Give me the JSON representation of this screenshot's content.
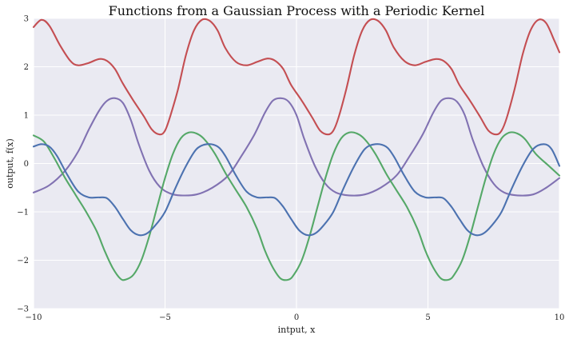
{
  "chart_data": {
    "type": "line",
    "title": "Functions from a Gaussian Process with a Periodic Kernel",
    "xlabel": "intput, x",
    "ylabel": "output, f(x)",
    "xlim": [
      -10,
      10
    ],
    "ylim": [
      -3,
      3
    ],
    "xticks": [
      -10,
      -5,
      0,
      5,
      10
    ],
    "yticks": [
      -3,
      -2,
      -1,
      0,
      1,
      2,
      3
    ],
    "xtick_labels": [
      "−10",
      "−5",
      "0",
      "5",
      "10"
    ],
    "ytick_labels": [
      "−3",
      "−2",
      "−1",
      "0",
      "1",
      "2",
      "3"
    ],
    "grid": true,
    "legend": false,
    "background": "#EAEAF2",
    "grid_color": "#ffffff",
    "series": [
      {
        "color": "#C44E52",
        "points": [
          [
            -10,
            2.82
          ],
          [
            -9.7,
            2.97
          ],
          [
            -9.4,
            2.85
          ],
          [
            -9.0,
            2.45
          ],
          [
            -8.6,
            2.12
          ],
          [
            -8.3,
            2.03
          ],
          [
            -7.9,
            2.08
          ],
          [
            -7.5,
            2.16
          ],
          [
            -7.2,
            2.12
          ],
          [
            -6.9,
            1.95
          ],
          [
            -6.6,
            1.65
          ],
          [
            -6.2,
            1.3
          ],
          [
            -5.8,
            0.97
          ],
          [
            -5.5,
            0.7
          ],
          [
            -5.2,
            0.6
          ],
          [
            -5.0,
            0.68
          ],
          [
            -4.8,
            0.98
          ],
          [
            -4.5,
            1.55
          ],
          [
            -4.2,
            2.25
          ],
          [
            -3.9,
            2.75
          ],
          [
            -3.6,
            2.97
          ],
          [
            -3.3,
            2.95
          ],
          [
            -3.0,
            2.75
          ],
          [
            -2.7,
            2.38
          ],
          [
            -2.3,
            2.1
          ],
          [
            -1.9,
            2.03
          ],
          [
            -1.5,
            2.1
          ],
          [
            -1.1,
            2.17
          ],
          [
            -0.8,
            2.12
          ],
          [
            -0.5,
            1.95
          ],
          [
            -0.2,
            1.62
          ],
          [
            0.2,
            1.3
          ],
          [
            0.6,
            0.95
          ],
          [
            0.9,
            0.68
          ],
          [
            1.2,
            0.6
          ],
          [
            1.4,
            0.68
          ],
          [
            1.6,
            0.95
          ],
          [
            1.9,
            1.55
          ],
          [
            2.2,
            2.25
          ],
          [
            2.5,
            2.75
          ],
          [
            2.8,
            2.97
          ],
          [
            3.1,
            2.95
          ],
          [
            3.4,
            2.75
          ],
          [
            3.7,
            2.4
          ],
          [
            4.1,
            2.12
          ],
          [
            4.5,
            2.03
          ],
          [
            4.9,
            2.1
          ],
          [
            5.3,
            2.16
          ],
          [
            5.6,
            2.12
          ],
          [
            5.9,
            1.95
          ],
          [
            6.2,
            1.62
          ],
          [
            6.6,
            1.3
          ],
          [
            7.0,
            0.95
          ],
          [
            7.3,
            0.68
          ],
          [
            7.6,
            0.6
          ],
          [
            7.8,
            0.68
          ],
          [
            8.0,
            0.95
          ],
          [
            8.3,
            1.55
          ],
          [
            8.6,
            2.25
          ],
          [
            8.9,
            2.75
          ],
          [
            9.2,
            2.97
          ],
          [
            9.5,
            2.9
          ],
          [
            9.8,
            2.55
          ],
          [
            10,
            2.3
          ]
        ]
      },
      {
        "color": "#8172B2",
        "points": [
          [
            -10,
            -0.6
          ],
          [
            -9.4,
            -0.45
          ],
          [
            -8.8,
            -0.15
          ],
          [
            -8.3,
            0.25
          ],
          [
            -7.9,
            0.7
          ],
          [
            -7.5,
            1.1
          ],
          [
            -7.2,
            1.3
          ],
          [
            -6.9,
            1.35
          ],
          [
            -6.6,
            1.25
          ],
          [
            -6.3,
            0.9
          ],
          [
            -6.0,
            0.4
          ],
          [
            -5.6,
            -0.15
          ],
          [
            -5.2,
            -0.48
          ],
          [
            -4.8,
            -0.62
          ],
          [
            -4.4,
            -0.66
          ],
          [
            -3.8,
            -0.64
          ],
          [
            -3.2,
            -0.5
          ],
          [
            -2.6,
            -0.25
          ],
          [
            -2.1,
            0.15
          ],
          [
            -1.6,
            0.6
          ],
          [
            -1.2,
            1.05
          ],
          [
            -0.9,
            1.3
          ],
          [
            -0.6,
            1.35
          ],
          [
            -0.3,
            1.28
          ],
          [
            0.0,
            1.0
          ],
          [
            0.3,
            0.5
          ],
          [
            0.7,
            -0.05
          ],
          [
            1.1,
            -0.42
          ],
          [
            1.5,
            -0.6
          ],
          [
            2.0,
            -0.66
          ],
          [
            2.6,
            -0.64
          ],
          [
            3.2,
            -0.5
          ],
          [
            3.8,
            -0.25
          ],
          [
            4.3,
            0.15
          ],
          [
            4.8,
            0.6
          ],
          [
            5.2,
            1.05
          ],
          [
            5.5,
            1.3
          ],
          [
            5.8,
            1.35
          ],
          [
            6.1,
            1.28
          ],
          [
            6.4,
            1.0
          ],
          [
            6.7,
            0.5
          ],
          [
            7.1,
            -0.05
          ],
          [
            7.5,
            -0.42
          ],
          [
            7.9,
            -0.6
          ],
          [
            8.4,
            -0.66
          ],
          [
            9.0,
            -0.64
          ],
          [
            9.5,
            -0.5
          ],
          [
            10,
            -0.3
          ]
        ]
      },
      {
        "color": "#55A868",
        "points": [
          [
            -10,
            0.58
          ],
          [
            -9.6,
            0.45
          ],
          [
            -9.2,
            0.1
          ],
          [
            -8.8,
            -0.3
          ],
          [
            -8.4,
            -0.65
          ],
          [
            -8.0,
            -1.0
          ],
          [
            -7.6,
            -1.4
          ],
          [
            -7.3,
            -1.8
          ],
          [
            -7.0,
            -2.15
          ],
          [
            -6.7,
            -2.38
          ],
          [
            -6.5,
            -2.4
          ],
          [
            -6.2,
            -2.3
          ],
          [
            -5.9,
            -2.0
          ],
          [
            -5.6,
            -1.5
          ],
          [
            -5.3,
            -0.9
          ],
          [
            -5.0,
            -0.3
          ],
          [
            -4.7,
            0.2
          ],
          [
            -4.4,
            0.52
          ],
          [
            -4.1,
            0.64
          ],
          [
            -3.8,
            0.62
          ],
          [
            -3.5,
            0.5
          ],
          [
            -3.1,
            0.2
          ],
          [
            -2.7,
            -0.2
          ],
          [
            -2.3,
            -0.55
          ],
          [
            -1.9,
            -0.9
          ],
          [
            -1.5,
            -1.35
          ],
          [
            -1.2,
            -1.8
          ],
          [
            -0.9,
            -2.15
          ],
          [
            -0.6,
            -2.38
          ],
          [
            -0.3,
            -2.4
          ],
          [
            -0.1,
            -2.3
          ],
          [
            0.2,
            -2.0
          ],
          [
            0.5,
            -1.5
          ],
          [
            0.8,
            -0.9
          ],
          [
            1.1,
            -0.3
          ],
          [
            1.4,
            0.2
          ],
          [
            1.7,
            0.52
          ],
          [
            2.0,
            0.64
          ],
          [
            2.3,
            0.62
          ],
          [
            2.6,
            0.5
          ],
          [
            3.0,
            0.2
          ],
          [
            3.4,
            -0.2
          ],
          [
            3.8,
            -0.55
          ],
          [
            4.2,
            -0.9
          ],
          [
            4.6,
            -1.35
          ],
          [
            4.9,
            -1.8
          ],
          [
            5.2,
            -2.15
          ],
          [
            5.5,
            -2.38
          ],
          [
            5.8,
            -2.4
          ],
          [
            6.0,
            -2.3
          ],
          [
            6.3,
            -2.0
          ],
          [
            6.6,
            -1.5
          ],
          [
            6.9,
            -0.9
          ],
          [
            7.2,
            -0.3
          ],
          [
            7.5,
            0.2
          ],
          [
            7.8,
            0.52
          ],
          [
            8.1,
            0.64
          ],
          [
            8.4,
            0.62
          ],
          [
            8.7,
            0.5
          ],
          [
            9.1,
            0.2
          ],
          [
            9.6,
            -0.05
          ],
          [
            10,
            -0.25
          ]
        ]
      },
      {
        "color": "#4C72B0",
        "points": [
          [
            -10,
            0.35
          ],
          [
            -9.7,
            0.4
          ],
          [
            -9.4,
            0.35
          ],
          [
            -9.1,
            0.15
          ],
          [
            -8.7,
            -0.25
          ],
          [
            -8.3,
            -0.58
          ],
          [
            -7.9,
            -0.7
          ],
          [
            -7.5,
            -0.7
          ],
          [
            -7.2,
            -0.72
          ],
          [
            -6.9,
            -0.9
          ],
          [
            -6.6,
            -1.15
          ],
          [
            -6.3,
            -1.38
          ],
          [
            -6.0,
            -1.48
          ],
          [
            -5.7,
            -1.45
          ],
          [
            -5.4,
            -1.3
          ],
          [
            -5.0,
            -1.0
          ],
          [
            -4.6,
            -0.5
          ],
          [
            -4.2,
            -0.05
          ],
          [
            -3.8,
            0.3
          ],
          [
            -3.4,
            0.4
          ],
          [
            -3.0,
            0.35
          ],
          [
            -2.7,
            0.15
          ],
          [
            -2.3,
            -0.25
          ],
          [
            -1.9,
            -0.58
          ],
          [
            -1.5,
            -0.7
          ],
          [
            -1.1,
            -0.7
          ],
          [
            -0.8,
            -0.72
          ],
          [
            -0.5,
            -0.9
          ],
          [
            -0.2,
            -1.15
          ],
          [
            0.1,
            -1.38
          ],
          [
            0.4,
            -1.48
          ],
          [
            0.7,
            -1.45
          ],
          [
            1.0,
            -1.3
          ],
          [
            1.4,
            -1.0
          ],
          [
            1.8,
            -0.5
          ],
          [
            2.2,
            -0.05
          ],
          [
            2.6,
            0.3
          ],
          [
            3.0,
            0.4
          ],
          [
            3.4,
            0.35
          ],
          [
            3.7,
            0.15
          ],
          [
            4.1,
            -0.25
          ],
          [
            4.5,
            -0.58
          ],
          [
            4.9,
            -0.7
          ],
          [
            5.3,
            -0.7
          ],
          [
            5.6,
            -0.72
          ],
          [
            5.9,
            -0.9
          ],
          [
            6.2,
            -1.15
          ],
          [
            6.5,
            -1.38
          ],
          [
            6.8,
            -1.48
          ],
          [
            7.1,
            -1.45
          ],
          [
            7.4,
            -1.3
          ],
          [
            7.8,
            -1.0
          ],
          [
            8.2,
            -0.5
          ],
          [
            8.6,
            -0.05
          ],
          [
            9.0,
            0.3
          ],
          [
            9.4,
            0.4
          ],
          [
            9.7,
            0.3
          ],
          [
            10,
            -0.05
          ]
        ]
      }
    ]
  }
}
